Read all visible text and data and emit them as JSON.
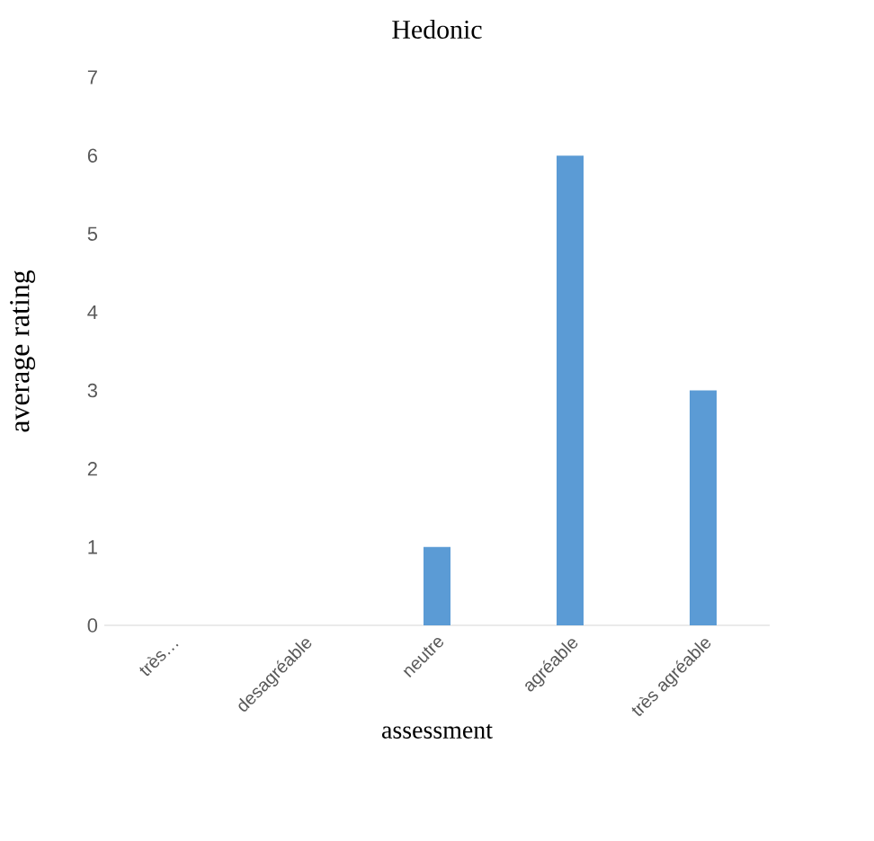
{
  "chart_data": {
    "type": "bar",
    "title": "Hedonic",
    "xlabel": "assessment",
    "ylabel": "average rating",
    "categories": [
      "très…",
      "desagréable",
      "neutre",
      "agréable",
      "très agréable"
    ],
    "values": [
      0,
      0,
      1,
      6,
      3
    ],
    "color": "#5b9bd5",
    "ylim": [
      0,
      7
    ],
    "yticks": [
      0,
      1,
      2,
      3,
      4,
      5,
      6,
      7
    ],
    "grid": false
  }
}
